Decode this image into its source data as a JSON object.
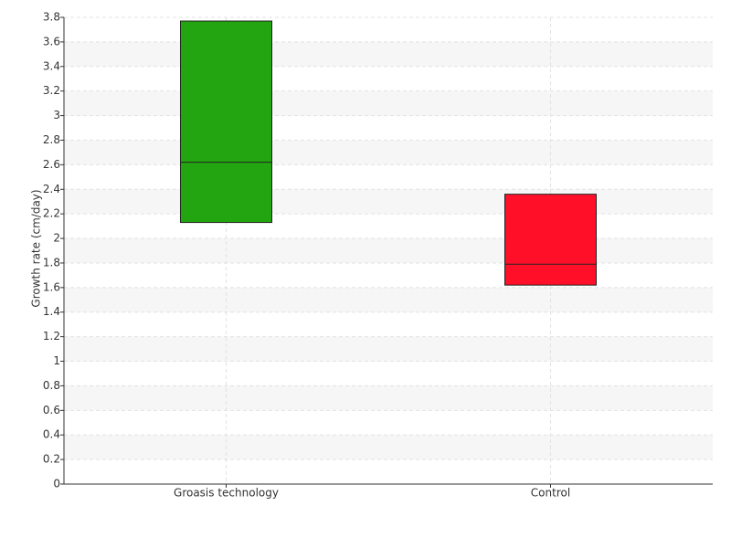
{
  "chart_data": {
    "type": "box",
    "y_label": "Growth rate (cm/day)",
    "categories": [
      "Groasis technology",
      "Control"
    ],
    "low": [
      2.13,
      1.62
    ],
    "median": [
      2.62,
      1.79
    ],
    "high": [
      3.77,
      2.36
    ],
    "colors": [
      "#22a510",
      "#ff0f28"
    ],
    "ylim": [
      0,
      3.8
    ],
    "yticks": [
      0,
      0.2,
      0.4,
      0.6,
      0.8,
      1,
      1.2,
      1.4,
      1.6,
      1.8,
      2,
      2.2,
      2.4,
      2.6,
      2.8,
      3,
      3.2,
      3.4,
      3.6,
      3.8
    ],
    "grid": true
  }
}
